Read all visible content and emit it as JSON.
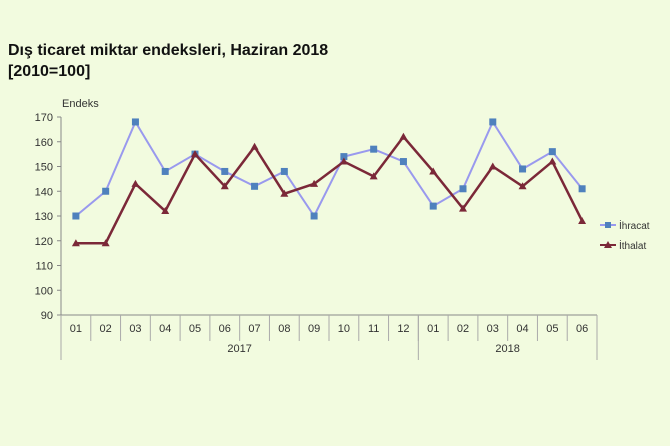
{
  "chart_data": {
    "type": "line",
    "title": "Dış ticaret miktar endeksleri, Haziran 2018",
    "subtitle": "[2010=100]",
    "ylabel": "Endeks",
    "ylim": [
      90,
      170
    ],
    "yticks": [
      90,
      100,
      110,
      120,
      130,
      140,
      150,
      160,
      170
    ],
    "categories": [
      "01",
      "02",
      "03",
      "04",
      "05",
      "06",
      "07",
      "08",
      "09",
      "10",
      "11",
      "12",
      "01",
      "02",
      "03",
      "04",
      "05",
      "06"
    ],
    "year_groups": [
      {
        "label": "2017",
        "count": 12
      },
      {
        "label": "2018",
        "count": 6
      }
    ],
    "grid": false,
    "legend": "right",
    "series": [
      {
        "name": "İhracat",
        "color": "#4f81bd",
        "line_color": "#9999ee",
        "marker": "square",
        "values": [
          130,
          140,
          168,
          148,
          155,
          148,
          142,
          148,
          130,
          154,
          157,
          152,
          134,
          141,
          168,
          149,
          156,
          141
        ]
      },
      {
        "name": "İthalat",
        "color": "#7b2838",
        "marker": "triangle",
        "values": [
          119,
          119,
          143,
          132,
          155,
          142,
          158,
          139,
          143,
          152,
          146,
          162,
          148,
          133,
          150,
          142,
          152,
          128
        ]
      }
    ]
  }
}
